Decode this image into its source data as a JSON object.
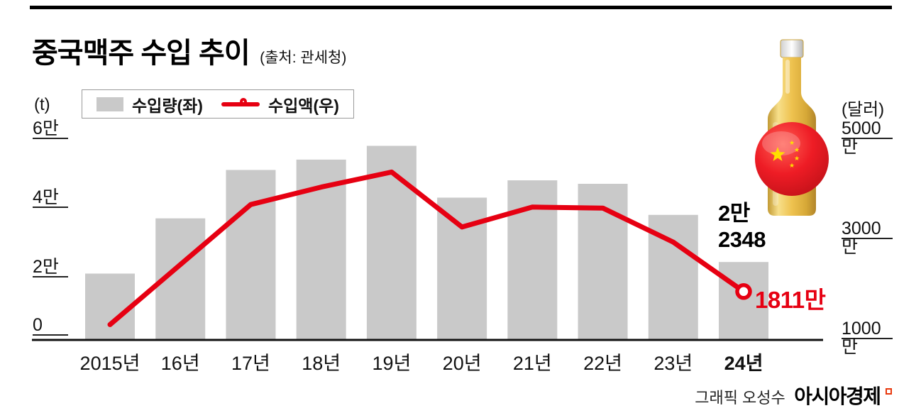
{
  "header": {
    "title": "중국맥주 수입 추이",
    "source": "(출처: 관세청)"
  },
  "legend": {
    "volume_label": "수입량(좌)",
    "value_label": "수입액(우)"
  },
  "axes": {
    "left_unit": "(t)",
    "right_unit": "(달러)"
  },
  "chart_data": {
    "type": "bar",
    "title": "중국맥주 수입 추이",
    "categories": [
      "2015년",
      "16년",
      "17년",
      "18년",
      "19년",
      "20년",
      "21년",
      "22년",
      "23년",
      "24년"
    ],
    "series": [
      {
        "name": "수입량(좌)",
        "type": "bar",
        "axis": "left",
        "unit": "t",
        "values": [
          19000,
          35000,
          49000,
          52000,
          56000,
          41000,
          46000,
          45000,
          36000,
          22348
        ]
      },
      {
        "name": "수입액(우)",
        "type": "line",
        "axis": "right",
        "unit": "달러",
        "values": [
          11500000,
          23500000,
          35500000,
          39000000,
          42000000,
          31000000,
          35000000,
          34800000,
          28000000,
          18110000
        ]
      }
    ],
    "left_axis": {
      "label": "(t)",
      "range": [
        0,
        60000
      ],
      "ticks": [
        0,
        20000,
        40000,
        60000
      ],
      "tick_labels": [
        "0",
        "2만",
        "4만",
        "6만"
      ]
    },
    "right_axis": {
      "label": "(달러)",
      "range": [
        10000000,
        50000000
      ],
      "ticks": [
        10000000,
        30000000,
        50000000
      ],
      "tick_labels": [
        "1000만",
        "3000만",
        "5000만"
      ]
    },
    "legend_position": "top-left",
    "grid": false
  },
  "annotations": {
    "bar_value_line1": "2만",
    "bar_value_line2": "2348",
    "line_value": "1811만"
  },
  "colors": {
    "bar": "#c9c9c9",
    "line": "#e60012",
    "text": "#000000",
    "axis": "#111111"
  },
  "footer": {
    "credit": "그래픽 오성수",
    "brand": "아시아경제"
  }
}
